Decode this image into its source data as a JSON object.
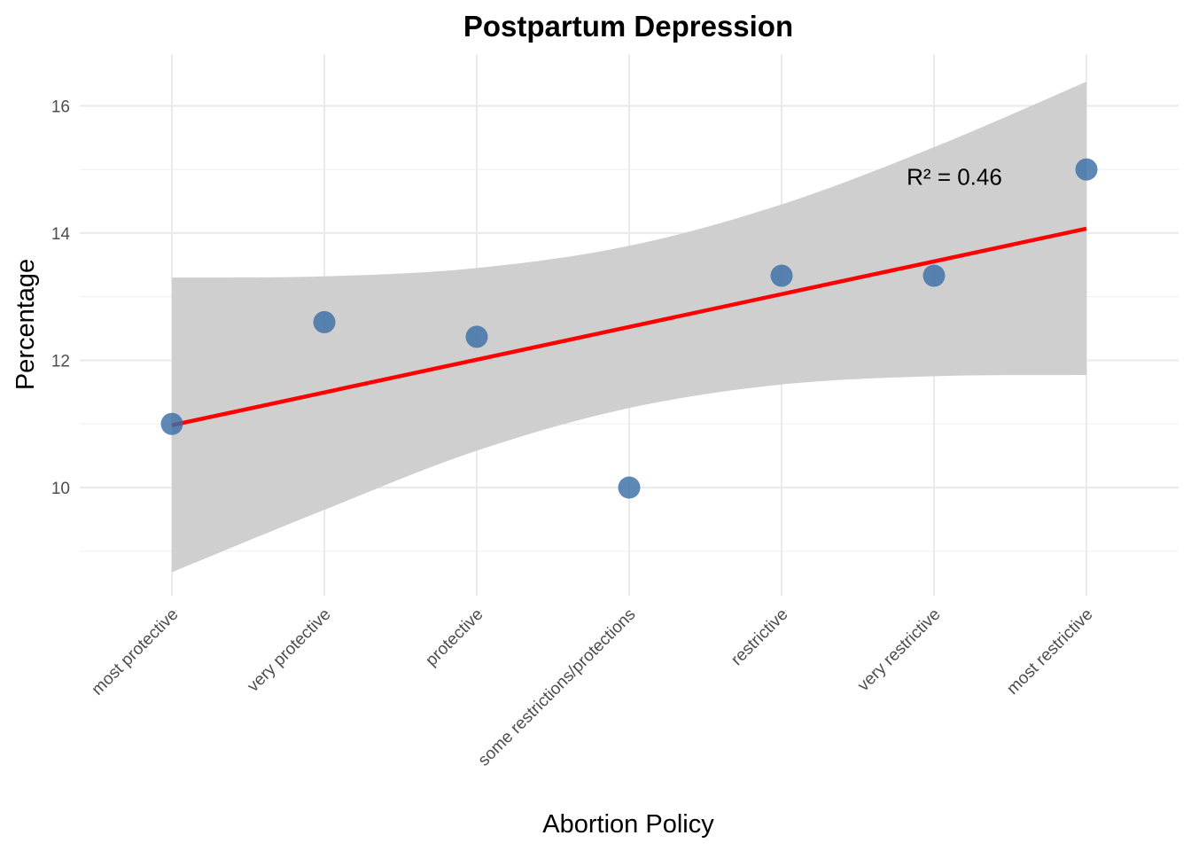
{
  "chart_data": {
    "type": "scatter",
    "title": "Postpartum Depression",
    "xlabel": "Abortion Policy",
    "ylabel": "Percentage",
    "categories": [
      "most protective",
      "very protective",
      "protective",
      "some restrictions/protections",
      "restrictive",
      "very restrictive",
      "most restrictive"
    ],
    "series": [
      {
        "values": [
          11.0,
          12.6,
          12.37,
          10.0,
          13.33,
          13.33,
          15.0
        ],
        "point_color": "#3a6ea5"
      }
    ],
    "trend_line": {
      "start": 10.98,
      "end": 14.07,
      "color": "#ff0000"
    },
    "confidence_band": {
      "upper": [
        13.3,
        13.32,
        13.45,
        13.8,
        14.45,
        15.35,
        16.38
      ],
      "lower": [
        8.67,
        9.65,
        10.58,
        11.25,
        11.62,
        11.75,
        11.77
      ],
      "color": "#cccccc"
    },
    "annotation": "R² = 0.46",
    "annotation_anchor": {
      "category": "very restrictive",
      "value": 14.9
    },
    "y_ticks": [
      10,
      12,
      14,
      16
    ],
    "y_ticks_labels": [
      "10",
      "12",
      "14",
      "16"
    ],
    "ylim": [
      8.3,
      16.8
    ],
    "grid": true,
    "legend": "none"
  }
}
